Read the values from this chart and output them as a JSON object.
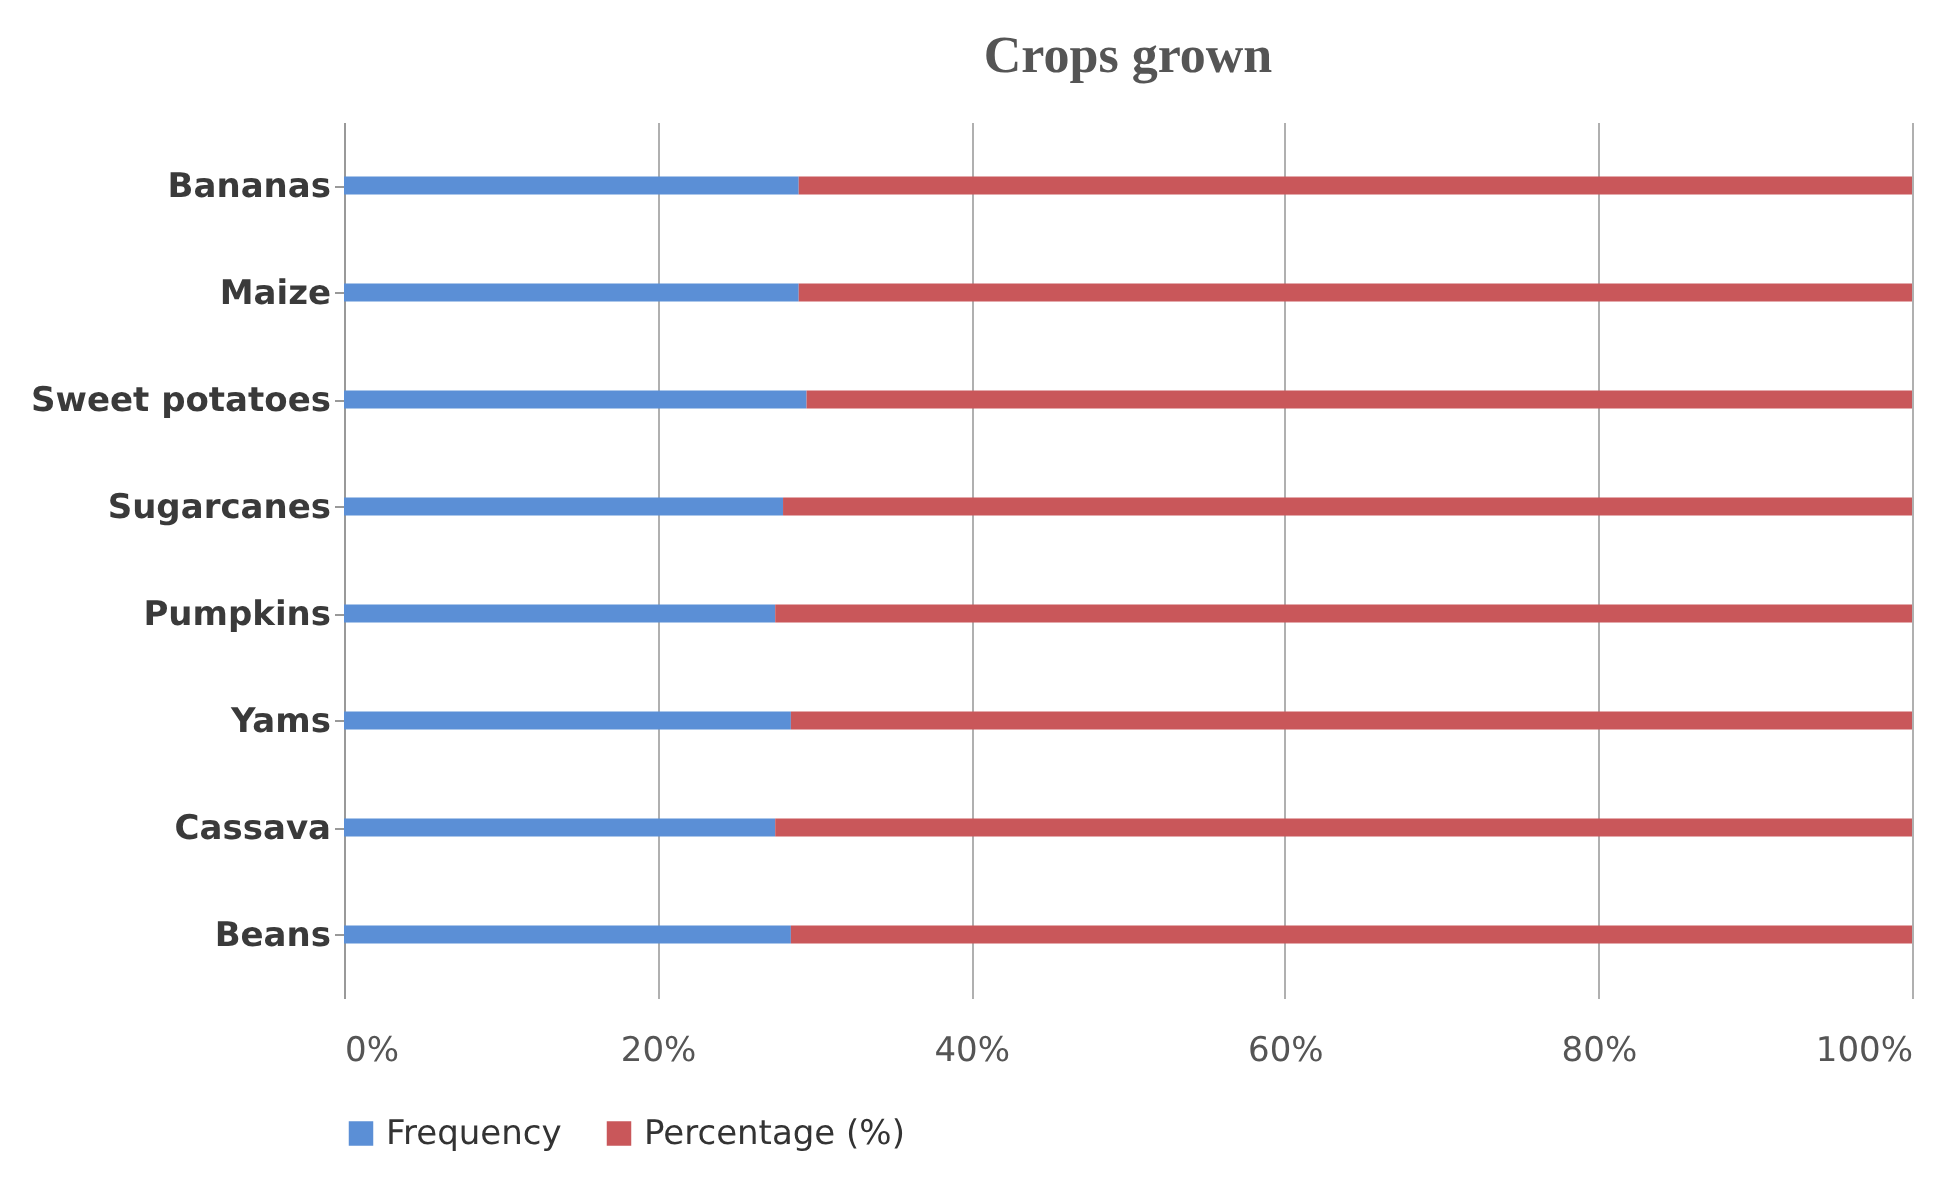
{
  "chart_data": {
    "type": "bar",
    "orientation": "horizontal",
    "stacked": true,
    "title": "Crops grown",
    "categories": [
      "Bananas",
      "Maize",
      "Sweet potatoes",
      "Sugarcanes",
      "Pumpkins",
      "Yams",
      "Cassava",
      "Beans"
    ],
    "series": [
      {
        "name": "Frequency",
        "color": "#5b8fd6",
        "values": [
          29,
          29,
          29.5,
          28,
          27.5,
          28.5,
          27.5,
          28.5
        ]
      },
      {
        "name": "Percentage (%)",
        "color": "#c9575a",
        "values": [
          71,
          71,
          70.5,
          72,
          72.5,
          71.5,
          72.5,
          71.5
        ]
      }
    ],
    "xlim": [
      0,
      100
    ],
    "xticks": [
      {
        "value": 0,
        "label": "0%"
      },
      {
        "value": 20,
        "label": "20%"
      },
      {
        "value": 40,
        "label": "40%"
      },
      {
        "value": 60,
        "label": "60%"
      },
      {
        "value": 80,
        "label": "80%"
      },
      {
        "value": 100,
        "label": "100%"
      }
    ],
    "grid": "x",
    "legend": "bottom"
  }
}
